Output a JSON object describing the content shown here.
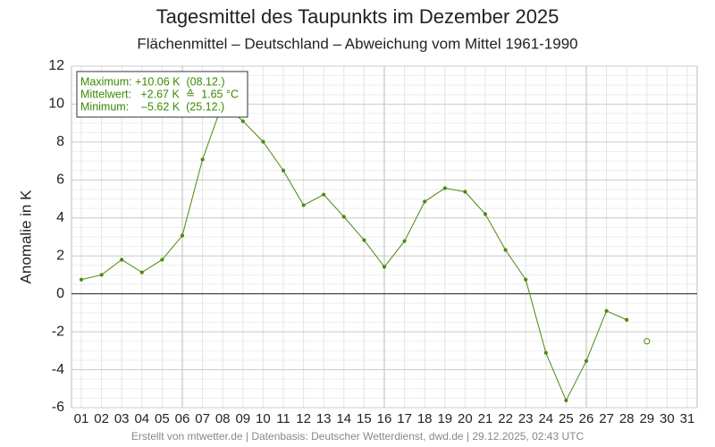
{
  "chart_data": {
    "type": "line",
    "title": "Tagesmittel des Taupunkts im Dezember 2025",
    "subtitle": "Flächenmittel – Deutschland – Abweichung vom Mittel 1961-1990",
    "y_label": "Anomalie in K",
    "footer": "Erstellt von mtwetter.de | Datenbasis: Deutscher Wetterdienst, dwd.de | 29.12.2025, 02:43 UTC",
    "annotations": [
      "Maximum: +10.06 K  (08.12.)",
      "Mittelwert:   +2.67 K  ≙  1.65 °C",
      "Minimum:    –5.62 K  (25.12.)"
    ],
    "categories": [
      "01",
      "02",
      "03",
      "04",
      "05",
      "06",
      "07",
      "08",
      "09",
      "10",
      "11",
      "12",
      "13",
      "14",
      "15",
      "16",
      "17",
      "18",
      "19",
      "20",
      "21",
      "22",
      "23",
      "24",
      "25",
      "26",
      "27",
      "28",
      "29",
      "30",
      "31"
    ],
    "series": [
      {
        "color": "#4a8a10",
        "marker": "filled",
        "values": [
          0.75,
          1.0,
          1.8,
          1.13,
          1.8,
          3.07,
          7.08,
          10.06,
          9.1,
          8.02,
          6.5,
          4.67,
          5.23,
          4.06,
          2.83,
          1.42,
          2.78,
          4.86,
          5.57,
          5.38,
          4.2,
          2.31,
          0.75,
          -3.11,
          -5.62,
          -3.54,
          -0.9,
          -1.37,
          null,
          null,
          null
        ]
      },
      {
        "color": "#4a8a10",
        "marker": "open",
        "values": [
          null,
          null,
          null,
          null,
          null,
          null,
          null,
          null,
          null,
          null,
          null,
          null,
          null,
          null,
          null,
          null,
          null,
          null,
          null,
          null,
          null,
          null,
          null,
          null,
          null,
          null,
          null,
          null,
          -2.5,
          null,
          null
        ]
      }
    ],
    "ylim": [
      -6,
      12
    ],
    "yticks": [
      -6,
      -4,
      -2,
      0,
      2,
      4,
      6,
      8,
      10,
      12
    ],
    "grid": true
  }
}
